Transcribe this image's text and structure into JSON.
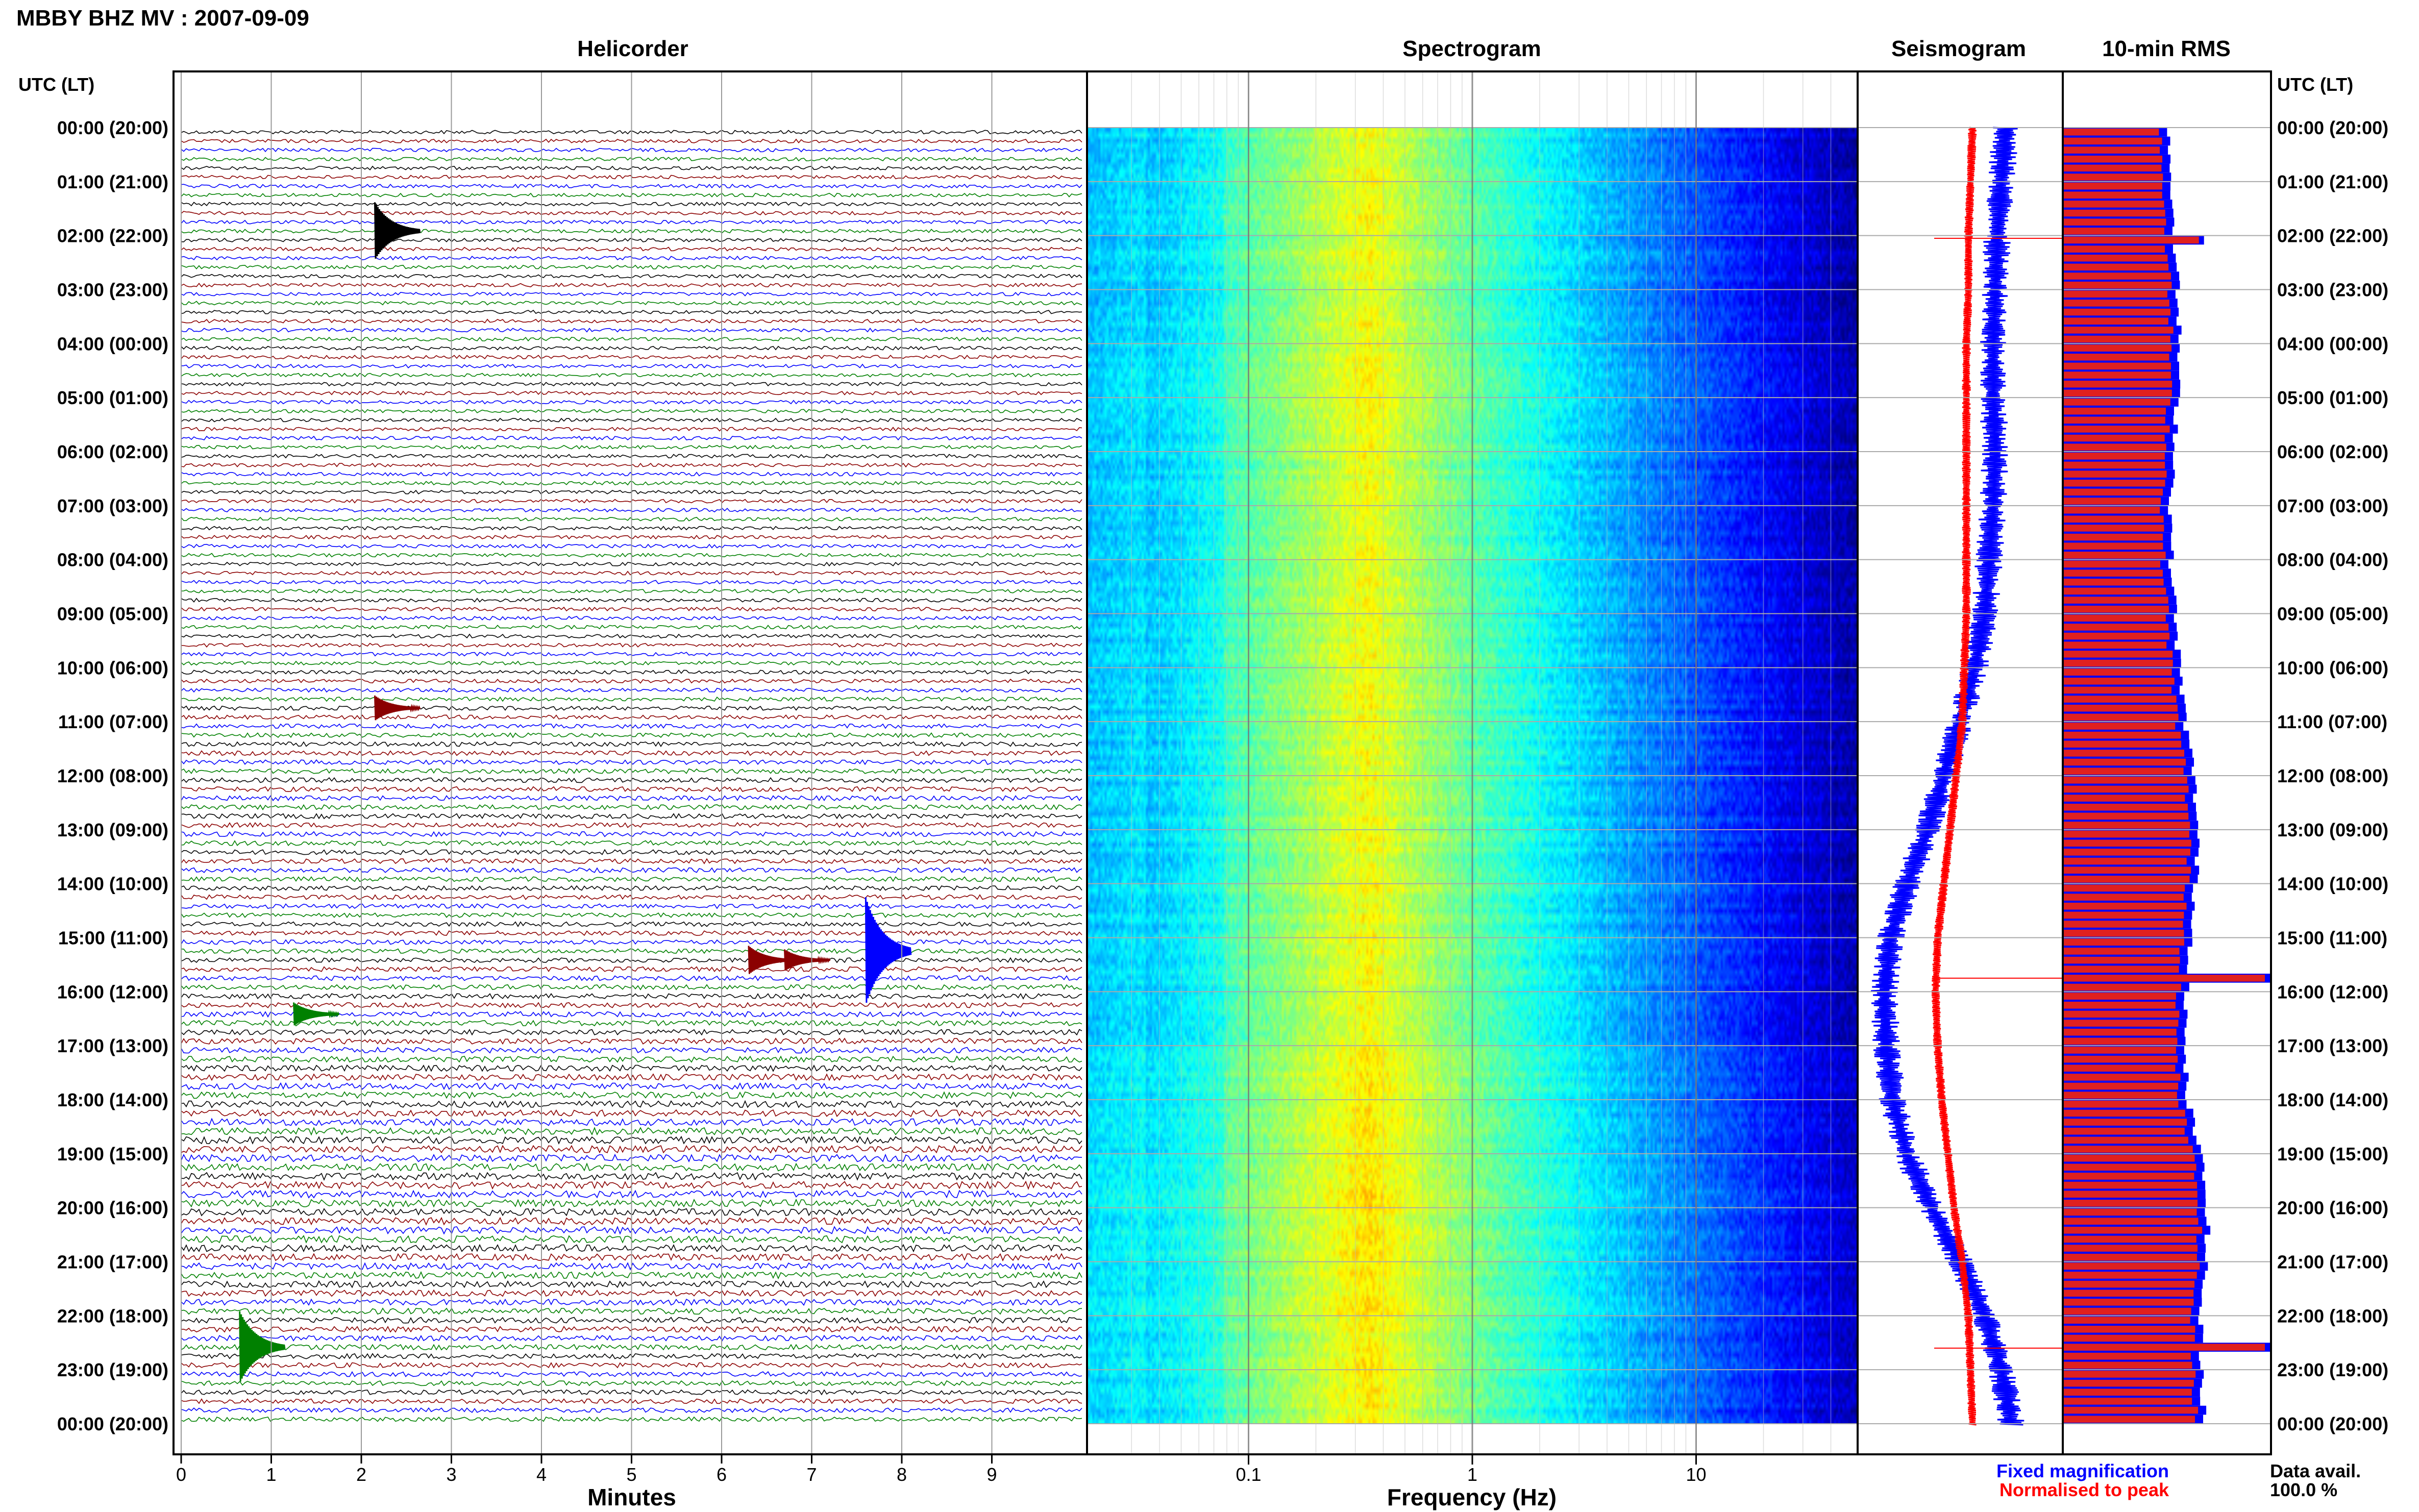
{
  "header": {
    "station_title": "MBBY BHZ MV : 2007-09-09",
    "utc_label": "UTC (LT)",
    "panels": [
      "Helicorder",
      "Spectrogram",
      "Seismogram",
      "10-min RMS"
    ]
  },
  "time_labels": [
    "00:00 (20:00)",
    "01:00 (21:00)",
    "02:00 (22:00)",
    "03:00 (23:00)",
    "04:00 (00:00)",
    "05:00 (01:00)",
    "06:00 (02:00)",
    "07:00 (03:00)",
    "08:00 (04:00)",
    "09:00 (05:00)",
    "10:00 (06:00)",
    "11:00 (07:00)",
    "12:00 (08:00)",
    "13:00 (09:00)",
    "14:00 (10:00)",
    "15:00 (11:00)",
    "16:00 (12:00)",
    "17:00 (13:00)",
    "18:00 (14:00)",
    "19:00 (15:00)",
    "20:00 (16:00)",
    "21:00 (17:00)",
    "22:00 (18:00)",
    "23:00 (19:00)",
    "00:00 (20:00)"
  ],
  "legend": {
    "fixed": "Fixed magnification",
    "normalised": "Normalised to peak",
    "fixed_color": "#0000ff",
    "normalised_color": "#ff0000"
  },
  "data_avail": {
    "label": "Data avail.",
    "value": "100.0 %"
  },
  "chart_data": [
    {
      "type": "line",
      "title": "Helicorder",
      "xlabel": "Minutes",
      "xlim": [
        0,
        10
      ],
      "x_ticks": [
        "0",
        "1",
        "2",
        "3",
        "4",
        "5",
        "6",
        "7",
        "8",
        "9"
      ],
      "ylim": [
        0,
        24
      ],
      "rows_per_hour": 6,
      "trace_colors": [
        "#000000",
        "#8b0000",
        "#0000ff",
        "#008000"
      ],
      "events": [
        {
          "hour_row": 11,
          "minute": 2.15,
          "amplitude": 3.2,
          "color": "#000000"
        },
        {
          "hour_row": 64,
          "minute": 2.15,
          "amplitude": 1.4,
          "color": "#8b0000"
        },
        {
          "hour_row": 92,
          "minute": 6.3,
          "amplitude": 1.6,
          "color": "#8b0000"
        },
        {
          "hour_row": 92,
          "minute": 6.7,
          "amplitude": 1.2,
          "color": "#8b0000"
        },
        {
          "hour_row": 91,
          "minute": 7.6,
          "amplitude": 6.0,
          "color": "#0000ff"
        },
        {
          "hour_row": 98,
          "minute": 1.25,
          "amplitude": 1.3,
          "color": "#008000"
        },
        {
          "hour_row": 135,
          "minute": 0.65,
          "amplitude": 4.0,
          "color": "#008000"
        }
      ]
    },
    {
      "type": "heatmap",
      "title": "Spectrogram",
      "xlabel": "Frequency (Hz)",
      "x_scale": "log",
      "xlim": [
        0.02,
        50
      ],
      "x_ticks": [
        0.1,
        1,
        10
      ],
      "x_tick_labels": [
        "0.1",
        "1",
        "10"
      ],
      "ylim": [
        0,
        24
      ],
      "peak_frequency_hz": 0.35,
      "colormap": [
        "#00007f",
        "#0000ff",
        "#0080ff",
        "#00ffff",
        "#80ff80",
        "#ffff00",
        "#ff8000"
      ]
    },
    {
      "type": "line",
      "title": "Seismogram",
      "ylim": [
        0,
        24
      ],
      "series": [
        {
          "name": "Fixed magnification",
          "color": "#0000ff",
          "hours": [
            0,
            1,
            2,
            3,
            4,
            5,
            6,
            7,
            8,
            9,
            10,
            11,
            12,
            13,
            14,
            15,
            16,
            17,
            18,
            19,
            20,
            21,
            22,
            23,
            24
          ],
          "values": [
            0.72,
            0.7,
            0.68,
            0.67,
            0.66,
            0.66,
            0.67,
            0.66,
            0.64,
            0.62,
            0.57,
            0.5,
            0.42,
            0.34,
            0.24,
            0.16,
            0.13,
            0.14,
            0.17,
            0.24,
            0.36,
            0.5,
            0.62,
            0.7,
            0.75
          ]
        },
        {
          "name": "Normalised to peak",
          "color": "#ff0000",
          "hours": [
            0,
            1,
            2,
            3,
            4,
            5,
            6,
            7,
            8,
            9,
            10,
            11,
            12,
            13,
            14,
            15,
            16,
            17,
            18,
            19,
            20,
            21,
            22,
            23,
            24
          ],
          "values": [
            0.56,
            0.55,
            0.54,
            0.54,
            0.53,
            0.53,
            0.53,
            0.53,
            0.53,
            0.53,
            0.52,
            0.51,
            0.48,
            0.45,
            0.42,
            0.39,
            0.38,
            0.39,
            0.41,
            0.44,
            0.47,
            0.51,
            0.54,
            0.55,
            0.56
          ]
        }
      ]
    },
    {
      "type": "bar",
      "title": "10-min RMS",
      "orientation": "horizontal",
      "ylim": [
        0,
        24
      ],
      "bins_per_hour": 6,
      "max_level": 1.0,
      "hours": [
        0,
        1,
        2,
        3,
        4,
        5,
        6,
        7,
        8,
        9,
        10,
        11,
        12,
        13,
        14,
        15,
        16,
        17,
        18,
        19,
        20,
        21,
        22,
        23,
        24
      ],
      "levels": [
        0.51,
        0.52,
        0.54,
        0.55,
        0.56,
        0.55,
        0.54,
        0.52,
        0.52,
        0.54,
        0.56,
        0.59,
        0.63,
        0.65,
        0.64,
        0.62,
        0.6,
        0.58,
        0.6,
        0.66,
        0.7,
        0.69,
        0.66,
        0.67,
        0.68
      ],
      "spikes": [
        {
          "hour": 2.05,
          "level": 0.68
        },
        {
          "hour": 15.75,
          "level": 1.0
        },
        {
          "hour": 22.6,
          "level": 1.0
        }
      ]
    }
  ]
}
